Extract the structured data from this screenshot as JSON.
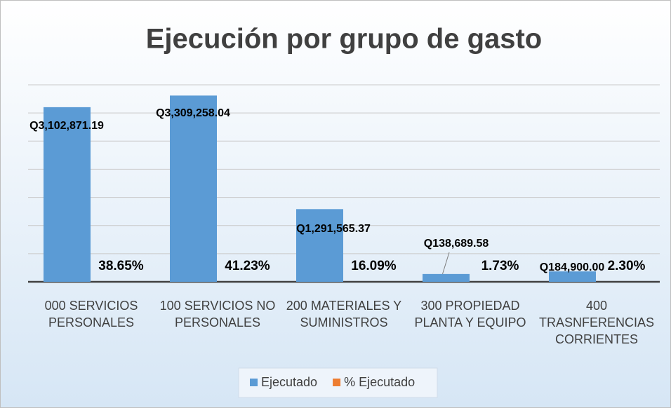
{
  "chart_data": {
    "type": "bar",
    "title": "Ejecución por grupo de gasto",
    "categories": [
      "000 SERVICIOS PERSONALES",
      "100 SERVICIOS NO PERSONALES",
      "200 MATERIALES Y SUMINISTROS",
      "300 PROPIEDAD PLANTA Y EQUIPO",
      "400 TRASNFERENCIAS CORRIENTES"
    ],
    "series": [
      {
        "name": "Ejecutado",
        "color": "#5b9bd5",
        "values": [
          3102871.19,
          3309258.04,
          1291565.37,
          138689.58,
          184900.0
        ],
        "value_labels": [
          "Q3,102,871.19",
          "Q3,309,258.04",
          "Q1,291,565.37",
          "Q138,689.58",
          "Q184,900.00"
        ]
      },
      {
        "name": "% Ejecutado",
        "color": "#ed7d31",
        "values": [
          38.65,
          41.23,
          16.09,
          1.73,
          2.3
        ],
        "value_labels": [
          "38.65%",
          "41.23%",
          "16.09%",
          "1.73%",
          "2.30%"
        ]
      }
    ],
    "ylim": [
      0,
      3500000
    ],
    "yticks": [
      0,
      500000,
      1000000,
      1500000,
      2000000,
      2500000,
      3000000,
      3500000
    ],
    "grid": true,
    "legend": "bottom"
  }
}
